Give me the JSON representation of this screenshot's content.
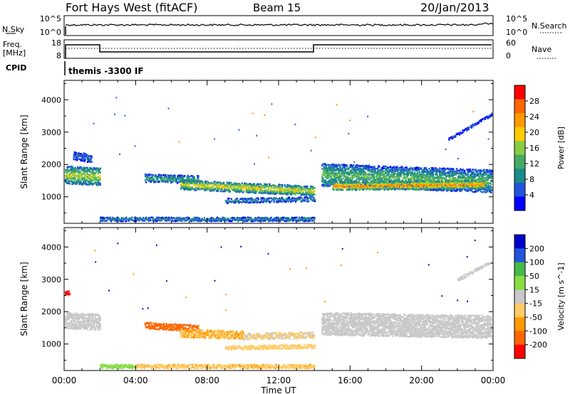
{
  "header": {
    "station": "Fort Hays West (fitACF)",
    "beam": "Beam 15",
    "date": "20/Jan/2013"
  },
  "top_panel": {
    "left_label": "N.Sky",
    "left_ticks": [
      "10^5",
      "10^0"
    ],
    "right_label": "N.Search",
    "right_ticks": [
      "10^5",
      "10^0"
    ]
  },
  "freq_panel": {
    "left_label_line1": "Freq.",
    "left_label_line2": "[MHz]",
    "left_ticks": [
      "18",
      "8"
    ],
    "right_label": "Nave",
    "right_ticks": [
      "60",
      "0"
    ]
  },
  "cpid": {
    "label": "CPID",
    "program": "themis -3300 IF"
  },
  "colors": {
    "power_scale": [
      "#0000ff",
      "#2255dd",
      "#1a8a8a",
      "#44aa66",
      "#88cc44",
      "#ffcc00",
      "#ff9900",
      "#ff6600",
      "#ff0000"
    ],
    "velocity_scale": [
      "#0000cc",
      "#2255dd",
      "#44bb44",
      "#88dd44",
      "#c8c8c8",
      "#ffcc66",
      "#ff9900",
      "#ff6600",
      "#ff0000"
    ]
  },
  "chart_data": [
    {
      "type": "heatmap",
      "title": "Power",
      "ylabel": "Slant Range [km]",
      "ylim": [
        180,
        4600
      ],
      "y_ticks": [
        "4000",
        "3000",
        "2000",
        "1000"
      ],
      "colorbar_label": "Power [dB]",
      "colorbar_ticks": [
        "28",
        "24",
        "20",
        "16",
        "12",
        "8",
        "4"
      ],
      "clim": [
        0,
        32
      ],
      "bands": [
        {
          "t0": 0.0,
          "t1": 2.0,
          "center_start": 1700,
          "center_end": 1650,
          "width": 550,
          "value": 18
        },
        {
          "t0": 0.5,
          "t1": 1.5,
          "center_start": 2300,
          "center_end": 2200,
          "width": 250,
          "value": 8
        },
        {
          "t0": 4.5,
          "t1": 7.5,
          "center_start": 1600,
          "center_end": 1550,
          "width": 250,
          "value": 12
        },
        {
          "t0": 6.5,
          "t1": 14.0,
          "center_start": 1400,
          "center_end": 1200,
          "width": 300,
          "value": 20
        },
        {
          "t0": 9.0,
          "t1": 14.0,
          "center_start": 900,
          "center_end": 950,
          "width": 150,
          "value": 10
        },
        {
          "t0": 14.4,
          "t1": 24.0,
          "center_start": 1700,
          "center_end": 1500,
          "width": 700,
          "value": 14
        },
        {
          "t0": 15.0,
          "t1": 23.5,
          "center_start": 1350,
          "center_end": 1400,
          "width": 250,
          "value": 26
        },
        {
          "t0": 21.5,
          "t1": 24.0,
          "center_start": 2800,
          "center_end": 3600,
          "width": 80,
          "value": 6
        },
        {
          "t0": 2.0,
          "t1": 14.0,
          "center_start": 330,
          "center_end": 330,
          "width": 120,
          "value": 10
        }
      ]
    },
    {
      "type": "heatmap",
      "title": "Velocity",
      "ylabel": "Slant Range [km]",
      "ylim": [
        180,
        4600
      ],
      "y_ticks": [
        "4000",
        "3000",
        "2000",
        "1000"
      ],
      "colorbar_label": "Velocity [m s^-1]",
      "colorbar_ticks": [
        "200",
        "100",
        "50",
        "15",
        "-15",
        "-50",
        "-100",
        "-200"
      ],
      "clim": [
        -250,
        250
      ],
      "bands": [
        {
          "t0": 0.0,
          "t1": 2.0,
          "center_start": 1750,
          "center_end": 1700,
          "width": 500,
          "value": 0
        },
        {
          "t0": 0.0,
          "t1": 0.3,
          "center_start": 2600,
          "center_end": 2600,
          "width": 120,
          "value": -220
        },
        {
          "t0": 4.5,
          "t1": 7.5,
          "center_start": 1600,
          "center_end": 1500,
          "width": 200,
          "value": -160
        },
        {
          "t0": 6.5,
          "t1": 10.0,
          "center_start": 1350,
          "center_end": 1300,
          "width": 250,
          "value": -80
        },
        {
          "t0": 10.0,
          "t1": 14.0,
          "center_start": 1250,
          "center_end": 1300,
          "width": 200,
          "value": -30
        },
        {
          "t0": 9.0,
          "t1": 14.0,
          "center_start": 900,
          "center_end": 950,
          "width": 120,
          "value": -60
        },
        {
          "t0": 14.4,
          "t1": 24.0,
          "center_start": 1650,
          "center_end": 1550,
          "width": 700,
          "value": 0
        },
        {
          "t0": 22.0,
          "t1": 24.0,
          "center_start": 3000,
          "center_end": 3600,
          "width": 100,
          "value": 0
        },
        {
          "t0": 2.0,
          "t1": 4.0,
          "center_start": 330,
          "center_end": 330,
          "width": 120,
          "value": 60
        },
        {
          "t0": 4.0,
          "t1": 14.0,
          "center_start": 330,
          "center_end": 330,
          "width": 120,
          "value": -70
        }
      ]
    }
  ],
  "x_axis": {
    "label": "Time UT",
    "ticks": [
      "00:00",
      "04:00",
      "08:00",
      "12:00",
      "16:00",
      "20:00",
      "00:00"
    ],
    "range_hours": [
      0,
      24
    ]
  }
}
